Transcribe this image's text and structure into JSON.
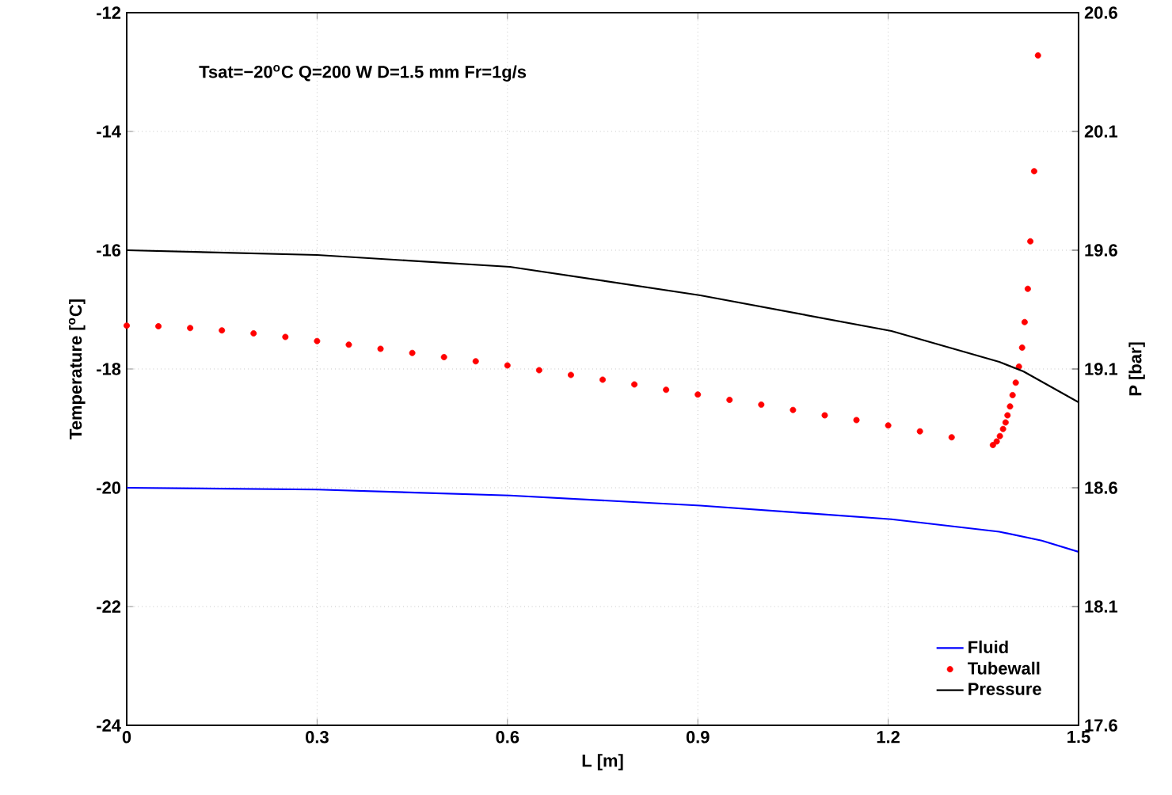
{
  "chart_data": {
    "type": "line",
    "xlabel": "L [m]",
    "ylabel": "Temperature [$^{o}$C]",
    "y2label": "P [bar]",
    "annotations": [
      "Tsat=−20$^{o}$C  Q=200 W D=1.5 mm Fr=1g/s"
    ],
    "xlim": [
      0,
      1.5
    ],
    "xticks": [
      0,
      0.3,
      0.6,
      0.9,
      1.2,
      1.5
    ],
    "ylim": [
      -24,
      -12
    ],
    "yticks": [
      -24,
      -22,
      -20,
      -18,
      -16,
      -14,
      -12
    ],
    "y2lim": [
      17.6,
      20.6
    ],
    "y2ticks": [
      17.6,
      18.1,
      18.6,
      19.1,
      19.6,
      20.1,
      20.6
    ],
    "grid": true,
    "legend": "bottom right",
    "series": [
      {
        "name": "Fluid",
        "color": "#0000ff",
        "marker": "none",
        "x": [
          0,
          0.3,
          0.604,
          0.904,
          1.205,
          1.375,
          1.442,
          1.5
        ],
        "values": [
          -20.0,
          -20.03,
          -20.13,
          -20.3,
          -20.53,
          -20.74,
          -20.89,
          -21.08
        ]
      },
      {
        "name": "Tubewall",
        "color": "#ff0000",
        "type": "scatter",
        "marker": "circle",
        "x": [
          0,
          0.05,
          0.1,
          0.15,
          0.2,
          0.25,
          0.3,
          0.35,
          0.4,
          0.45,
          0.5,
          0.55,
          0.6,
          0.65,
          0.7,
          0.75,
          0.8,
          0.85,
          0.9,
          0.95,
          1.0,
          1.05,
          1.1,
          1.15,
          1.2,
          1.25,
          1.3,
          1.365,
          1.371,
          1.376,
          1.381,
          1.385,
          1.388,
          1.392,
          1.396,
          1.401,
          1.406,
          1.411,
          1.415,
          1.42,
          1.424,
          1.43,
          1.436
        ],
        "values": [
          -17.27,
          -17.28,
          -17.31,
          -17.35,
          -17.4,
          -17.46,
          -17.53,
          -17.59,
          -17.66,
          -17.73,
          -17.8,
          -17.87,
          -17.94,
          -18.02,
          -18.1,
          -18.18,
          -18.26,
          -18.35,
          -18.43,
          -18.52,
          -18.6,
          -18.69,
          -18.78,
          -18.86,
          -18.95,
          -19.05,
          -19.15,
          -19.28,
          -19.22,
          -19.13,
          -19.01,
          -18.9,
          -18.78,
          -18.63,
          -18.44,
          -18.23,
          -17.96,
          -17.64,
          -17.21,
          -16.65,
          -15.85,
          -14.67,
          -12.72
        ]
      },
      {
        "name": "Pressure",
        "color": "#000000",
        "marker": "none",
        "axis": "y2",
        "x": [
          0,
          0.3,
          0.604,
          0.904,
          1.205,
          1.375,
          1.413,
          1.5
        ],
        "values": [
          19.6,
          19.58,
          19.53,
          19.41,
          19.26,
          19.13,
          19.09,
          18.96
        ]
      }
    ]
  }
}
